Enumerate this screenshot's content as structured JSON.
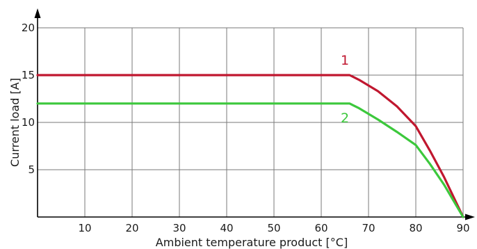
{
  "chart_data": {
    "type": "line",
    "xlabel": "Ambient temperature product [°C]",
    "ylabel": "Current load [A]",
    "xlim": [
      0,
      90
    ],
    "ylim": [
      0,
      20
    ],
    "x_ticks": [
      10,
      20,
      30,
      40,
      50,
      60,
      70,
      80,
      90
    ],
    "y_ticks": [
      5,
      10,
      15,
      20
    ],
    "grid": true,
    "series": [
      {
        "name": "1",
        "color": "#c0172f",
        "points": [
          [
            0,
            15
          ],
          [
            65,
            15
          ],
          [
            66,
            15
          ],
          [
            68,
            14.5
          ],
          [
            72,
            13.3
          ],
          [
            76,
            11.7
          ],
          [
            80,
            9.6
          ],
          [
            83,
            7.0
          ],
          [
            86,
            4.2
          ],
          [
            90,
            0
          ]
        ]
      },
      {
        "name": "2",
        "color": "#3cc83c",
        "points": [
          [
            0,
            12
          ],
          [
            65,
            12
          ],
          [
            66,
            12
          ],
          [
            68,
            11.5
          ],
          [
            72,
            10.3
          ],
          [
            76,
            9.0
          ],
          [
            80,
            7.6
          ],
          [
            83,
            5.6
          ],
          [
            86,
            3.4
          ],
          [
            90,
            0
          ]
        ]
      }
    ],
    "series_label_positions": {
      "1": [
        65,
        16.1
      ],
      "2": [
        65,
        10.0
      ]
    }
  }
}
